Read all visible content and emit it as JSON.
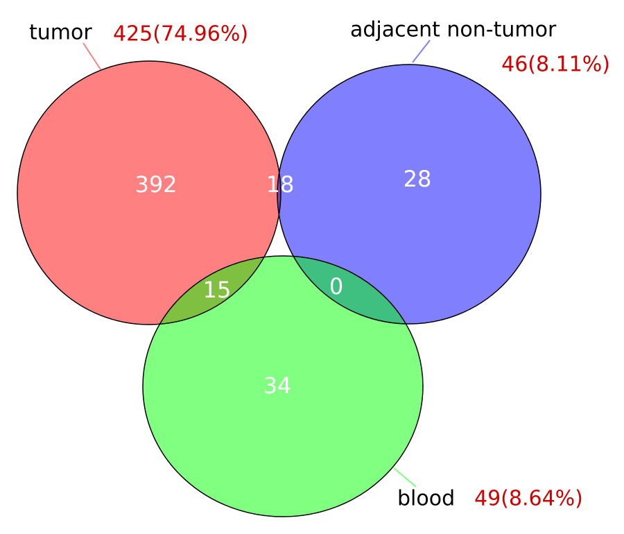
{
  "sets": [
    {
      "name": "tumor",
      "count_label": "425(74.96%)"
    },
    {
      "name": "adjacent non-tumor",
      "count_label": "46(8.11%)"
    },
    {
      "name": "blood",
      "count_label": "49(8.64%)"
    }
  ],
  "regions": {
    "tumor_only": 392,
    "tumor_adjacent": 18,
    "adjacent_only": 28,
    "tumor_blood": 15,
    "adjacent_blood": 0,
    "blood_only": 34
  }
}
